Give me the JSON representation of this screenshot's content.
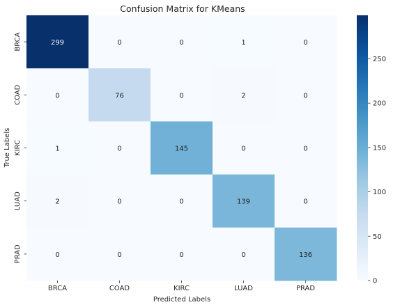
{
  "chart_data": {
    "type": "heatmap",
    "title": "Confusion Matrix for KMeans",
    "xlabel": "Predicted Labels",
    "ylabel": "True Labels",
    "x_categories": [
      "BRCA",
      "COAD",
      "KIRC",
      "LUAD",
      "PRAD"
    ],
    "y_categories": [
      "BRCA",
      "COAD",
      "KIRC",
      "LUAD",
      "PRAD"
    ],
    "values": [
      [
        299,
        0,
        0,
        1,
        0
      ],
      [
        0,
        76,
        0,
        2,
        0
      ],
      [
        1,
        0,
        145,
        0,
        0
      ],
      [
        2,
        0,
        0,
        139,
        0
      ],
      [
        0,
        0,
        0,
        0,
        136
      ]
    ],
    "colormap": "Blues",
    "colorbar": {
      "min": 0,
      "max": 299,
      "ticks": [
        0,
        50,
        100,
        150,
        200,
        250
      ]
    }
  }
}
